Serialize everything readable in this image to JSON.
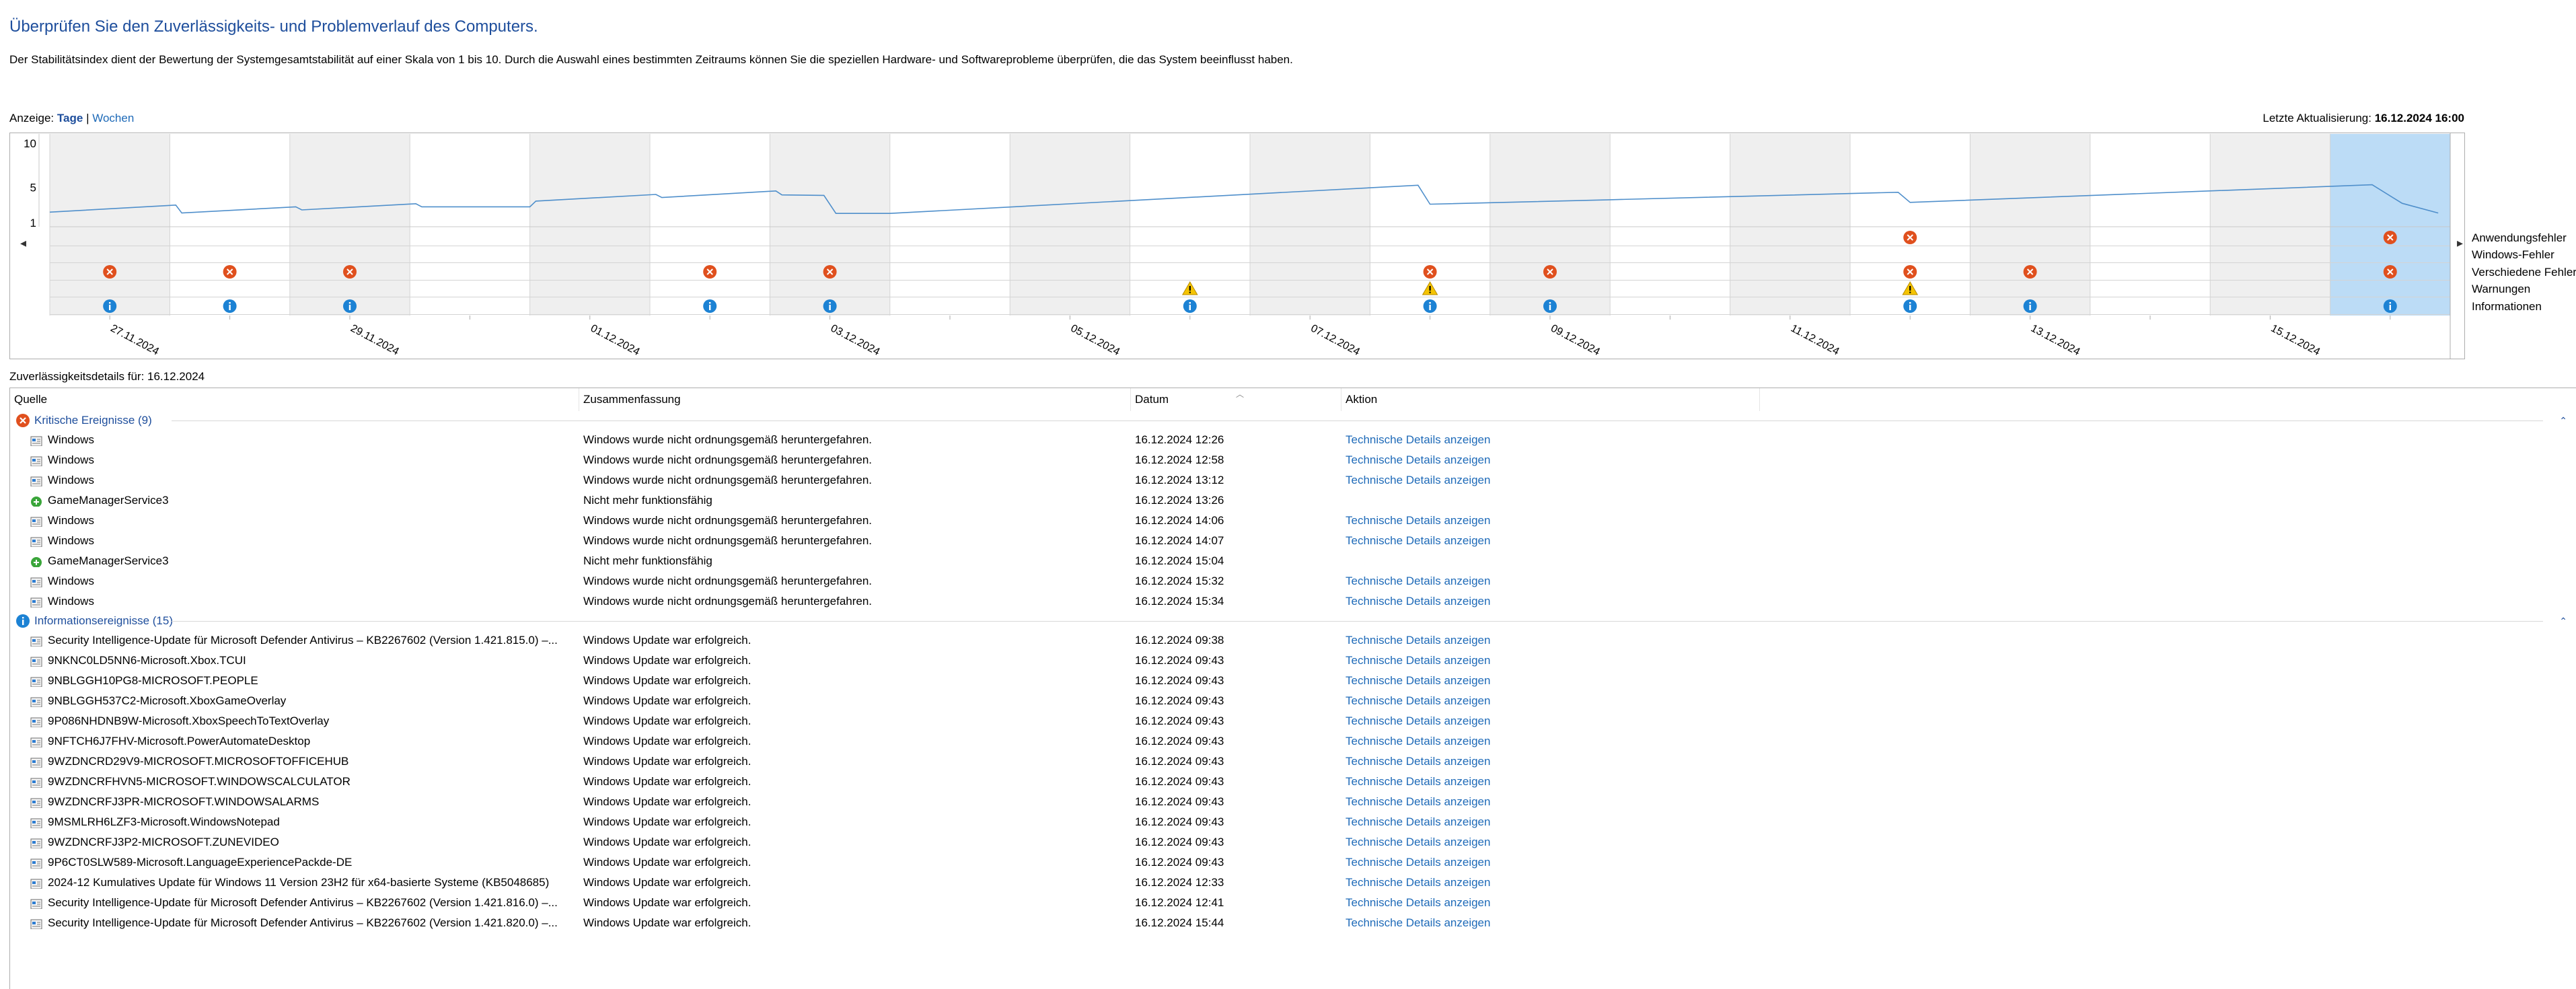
{
  "header": {
    "title": "Überprüfen Sie den Zuverlässigkeits- und Problemverlauf des Computers.",
    "description": "Der Stabilitätsindex dient der Bewertung der Systemgesamtstabilität auf einer Skala von 1 bis 10. Durch die Auswahl eines bestimmten Zeitraums können Sie die speziellen Hardware- und Softwareprobleme überprüfen, die das System beeinflusst haben."
  },
  "view": {
    "label": "Anzeige:",
    "days": "Tage",
    "separator": "|",
    "weeks": "Wochen"
  },
  "last_update": {
    "label": "Letzte Aktualisierung:",
    "value": "16.12.2024 16:00"
  },
  "chart_data": {
    "type": "line",
    "y_ticks": [
      "10",
      "5",
      "1"
    ],
    "ylim": [
      1,
      10
    ],
    "x_labels": [
      "27.11.2024",
      "29.11.2024",
      "01.12.2024",
      "03.12.2024",
      "05.12.2024",
      "07.12.2024",
      "09.12.2024",
      "11.12.2024",
      "13.12.2024",
      "15.12.2024"
    ],
    "day_count": 20,
    "selected_day": 19,
    "stability": [
      [
        0,
        2.2
      ],
      [
        1.05,
        3.0
      ],
      [
        1.1,
        2.1
      ],
      [
        2.05,
        2.8
      ],
      [
        2.1,
        2.45
      ],
      [
        3.05,
        3.15
      ],
      [
        3.1,
        2.8
      ],
      [
        4.0,
        2.8
      ],
      [
        4.05,
        3.45
      ],
      [
        5.05,
        4.2
      ],
      [
        5.1,
        3.85
      ],
      [
        6.05,
        4.6
      ],
      [
        6.1,
        4.15
      ],
      [
        6.45,
        4.1
      ],
      [
        6.55,
        2.05
      ],
      [
        7.0,
        2.05
      ],
      [
        11.4,
        5.25
      ],
      [
        11.5,
        3.1
      ],
      [
        13.0,
        3.6
      ],
      [
        15.4,
        4.45
      ],
      [
        15.5,
        3.3
      ],
      [
        19.35,
        5.3
      ],
      [
        19.6,
        3.2
      ],
      [
        19.9,
        2.1
      ]
    ],
    "categories": [
      "Anwendungsfehler",
      "Windows-Fehler",
      "Verschiedene Fehler",
      "Warnungen",
      "Informationen"
    ],
    "events": [
      {
        "day": 0,
        "category": 2,
        "kind": "error"
      },
      {
        "day": 0,
        "category": 4,
        "kind": "info"
      },
      {
        "day": 1,
        "category": 2,
        "kind": "error"
      },
      {
        "day": 1,
        "category": 4,
        "kind": "info"
      },
      {
        "day": 2,
        "category": 2,
        "kind": "error"
      },
      {
        "day": 2,
        "category": 4,
        "kind": "info"
      },
      {
        "day": 5,
        "category": 2,
        "kind": "error"
      },
      {
        "day": 5,
        "category": 4,
        "kind": "info"
      },
      {
        "day": 6,
        "category": 2,
        "kind": "error"
      },
      {
        "day": 6,
        "category": 4,
        "kind": "info"
      },
      {
        "day": 9,
        "category": 3,
        "kind": "warning"
      },
      {
        "day": 9,
        "category": 4,
        "kind": "info"
      },
      {
        "day": 11,
        "category": 2,
        "kind": "error"
      },
      {
        "day": 11,
        "category": 3,
        "kind": "warning"
      },
      {
        "day": 11,
        "category": 4,
        "kind": "info"
      },
      {
        "day": 12,
        "category": 2,
        "kind": "error"
      },
      {
        "day": 12,
        "category": 4,
        "kind": "info"
      },
      {
        "day": 15,
        "category": 0,
        "kind": "error"
      },
      {
        "day": 15,
        "category": 2,
        "kind": "error"
      },
      {
        "day": 15,
        "category": 3,
        "kind": "warning"
      },
      {
        "day": 15,
        "category": 4,
        "kind": "info"
      },
      {
        "day": 16,
        "category": 2,
        "kind": "error"
      },
      {
        "day": 16,
        "category": 4,
        "kind": "info"
      },
      {
        "day": 19,
        "category": 0,
        "kind": "error"
      },
      {
        "day": 19,
        "category": 2,
        "kind": "error"
      },
      {
        "day": 19,
        "category": 4,
        "kind": "info"
      }
    ],
    "colors": {
      "line": "#4f8fcb",
      "selected": "#bcdcf6",
      "shade": "#efefef",
      "error": "#e0501e",
      "info": "#1c82d4",
      "warning": "#f5c400"
    }
  },
  "details": {
    "label": "Zuverlässigkeitsdetails für: 16.12.2024",
    "columns": [
      "Quelle",
      "Zusammenfassung",
      "Datum",
      "Aktion"
    ],
    "groups": [
      {
        "title": "Kritische Ereignisse (9)",
        "icon": "error-icon",
        "rows": [
          {
            "source": "Windows",
            "icon": "windows-app-icon",
            "summary": "Windows wurde nicht ordnungsgemäß heruntergefahren.",
            "date": "16.12.2024 12:26",
            "action": "Technische Details anzeigen"
          },
          {
            "source": "Windows",
            "icon": "windows-app-icon",
            "summary": "Windows wurde nicht ordnungsgemäß heruntergefahren.",
            "date": "16.12.2024 12:58",
            "action": "Technische Details anzeigen"
          },
          {
            "source": "Windows",
            "icon": "windows-app-icon",
            "summary": "Windows wurde nicht ordnungsgemäß heruntergefahren.",
            "date": "16.12.2024 13:12",
            "action": "Technische Details anzeigen"
          },
          {
            "source": "GameManagerService3",
            "icon": "game-service-icon",
            "summary": "Nicht mehr funktionsfähig",
            "date": "16.12.2024 13:26",
            "action": ""
          },
          {
            "source": "Windows",
            "icon": "windows-app-icon",
            "summary": "Windows wurde nicht ordnungsgemäß heruntergefahren.",
            "date": "16.12.2024 14:06",
            "action": "Technische Details anzeigen"
          },
          {
            "source": "Windows",
            "icon": "windows-app-icon",
            "summary": "Windows wurde nicht ordnungsgemäß heruntergefahren.",
            "date": "16.12.2024 14:07",
            "action": "Technische Details anzeigen"
          },
          {
            "source": "GameManagerService3",
            "icon": "game-service-icon",
            "summary": "Nicht mehr funktionsfähig",
            "date": "16.12.2024 15:04",
            "action": ""
          },
          {
            "source": "Windows",
            "icon": "windows-app-icon",
            "summary": "Windows wurde nicht ordnungsgemäß heruntergefahren.",
            "date": "16.12.2024 15:32",
            "action": "Technische Details anzeigen"
          },
          {
            "source": "Windows",
            "icon": "windows-app-icon",
            "summary": "Windows wurde nicht ordnungsgemäß heruntergefahren.",
            "date": "16.12.2024 15:34",
            "action": "Technische Details anzeigen"
          }
        ]
      },
      {
        "title": "Informationsereignisse (15)",
        "icon": "info-icon",
        "rows": [
          {
            "source": "Security Intelligence-Update für Microsoft Defender Antivirus – KB2267602 (Version 1.421.815.0) –...",
            "icon": "windows-app-icon",
            "summary": "Windows Update war erfolgreich.",
            "date": "16.12.2024 09:38",
            "action": "Technische Details anzeigen"
          },
          {
            "source": "9NKNC0LD5NN6-Microsoft.Xbox.TCUI",
            "icon": "windows-app-icon",
            "summary": "Windows Update war erfolgreich.",
            "date": "16.12.2024 09:43",
            "action": "Technische Details anzeigen"
          },
          {
            "source": "9NBLGGH10PG8-MICROSOFT.PEOPLE",
            "icon": "windows-app-icon",
            "summary": "Windows Update war erfolgreich.",
            "date": "16.12.2024 09:43",
            "action": "Technische Details anzeigen"
          },
          {
            "source": "9NBLGGH537C2-Microsoft.XboxGameOverlay",
            "icon": "windows-app-icon",
            "summary": "Windows Update war erfolgreich.",
            "date": "16.12.2024 09:43",
            "action": "Technische Details anzeigen"
          },
          {
            "source": "9P086NHDNB9W-Microsoft.XboxSpeechToTextOverlay",
            "icon": "windows-app-icon",
            "summary": "Windows Update war erfolgreich.",
            "date": "16.12.2024 09:43",
            "action": "Technische Details anzeigen"
          },
          {
            "source": "9NFTCH6J7FHV-Microsoft.PowerAutomateDesktop",
            "icon": "windows-app-icon",
            "summary": "Windows Update war erfolgreich.",
            "date": "16.12.2024 09:43",
            "action": "Technische Details anzeigen"
          },
          {
            "source": "9WZDNCRD29V9-MICROSOFT.MICROSOFTOFFICEHUB",
            "icon": "windows-app-icon",
            "summary": "Windows Update war erfolgreich.",
            "date": "16.12.2024 09:43",
            "action": "Technische Details anzeigen"
          },
          {
            "source": "9WZDNCRFHVN5-MICROSOFT.WINDOWSCALCULATOR",
            "icon": "windows-app-icon",
            "summary": "Windows Update war erfolgreich.",
            "date": "16.12.2024 09:43",
            "action": "Technische Details anzeigen"
          },
          {
            "source": "9WZDNCRFJ3PR-MICROSOFT.WINDOWSALARMS",
            "icon": "windows-app-icon",
            "summary": "Windows Update war erfolgreich.",
            "date": "16.12.2024 09:43",
            "action": "Technische Details anzeigen"
          },
          {
            "source": "9MSMLRH6LZF3-Microsoft.WindowsNotepad",
            "icon": "windows-app-icon",
            "summary": "Windows Update war erfolgreich.",
            "date": "16.12.2024 09:43",
            "action": "Technische Details anzeigen"
          },
          {
            "source": "9WZDNCRFJ3P2-MICROSOFT.ZUNEVIDEO",
            "icon": "windows-app-icon",
            "summary": "Windows Update war erfolgreich.",
            "date": "16.12.2024 09:43",
            "action": "Technische Details anzeigen"
          },
          {
            "source": "9P6CT0SLW589-Microsoft.LanguageExperiencePackde-DE",
            "icon": "windows-app-icon",
            "summary": "Windows Update war erfolgreich.",
            "date": "16.12.2024 09:43",
            "action": "Technische Details anzeigen"
          },
          {
            "source": "2024-12 Kumulatives Update für Windows 11 Version 23H2 für x64-basierte Systeme (KB5048685)",
            "icon": "windows-app-icon",
            "summary": "Windows Update war erfolgreich.",
            "date": "16.12.2024 12:33",
            "action": "Technische Details anzeigen"
          },
          {
            "source": "Security Intelligence-Update für Microsoft Defender Antivirus – KB2267602 (Version 1.421.816.0) –...",
            "icon": "windows-app-icon",
            "summary": "Windows Update war erfolgreich.",
            "date": "16.12.2024 12:41",
            "action": "Technische Details anzeigen"
          },
          {
            "source": "Security Intelligence-Update für Microsoft Defender Antivirus – KB2267602 (Version 1.421.820.0) –...",
            "icon": "windows-app-icon",
            "summary": "Windows Update war erfolgreich.",
            "date": "16.12.2024 15:44",
            "action": "Technische Details anzeigen"
          }
        ]
      }
    ]
  }
}
